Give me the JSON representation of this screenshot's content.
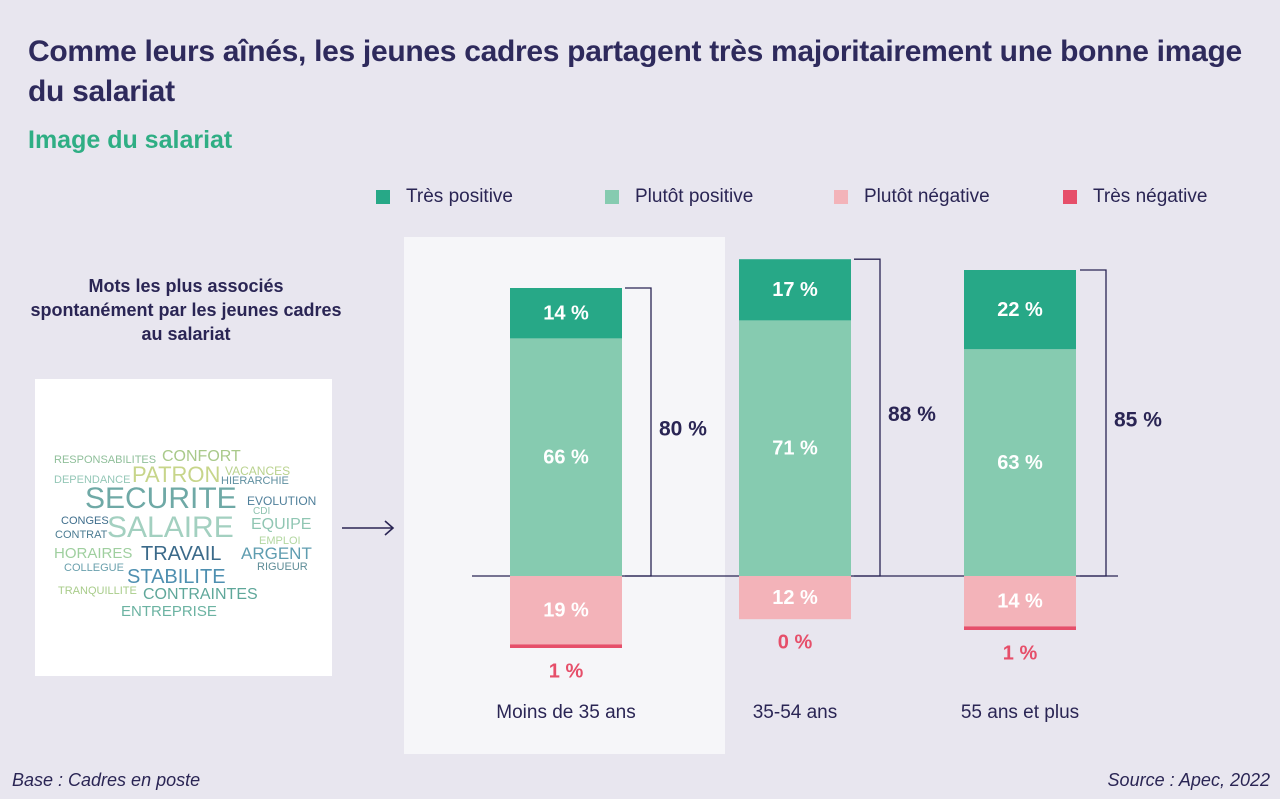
{
  "title": "Comme leurs aînés, les jeunes cadres partagent très majoritairement une bonne image du salariat",
  "subtitle": "Image du salariat",
  "legend": [
    {
      "label": "Très positive",
      "color": "#27a887"
    },
    {
      "label": "Plutôt positive",
      "color": "#86cbb0"
    },
    {
      "label": "Plutôt négative",
      "color": "#f3b3b9"
    },
    {
      "label": "Très négative",
      "color": "#e64f6a"
    }
  ],
  "wordcloud": {
    "title": "Mots les plus associés spontanément par les jeunes cadres au salariat",
    "words": [
      {
        "text": "RESPONSABILITES",
        "color": "#8fbf9a"
      },
      {
        "text": "CONFORT",
        "color": "#a9c98a"
      },
      {
        "text": "PATRON",
        "color": "#c7d58a"
      },
      {
        "text": "VACANCES",
        "color": "#b9d28e"
      },
      {
        "text": "DEPENDANCE",
        "color": "#94c7b7"
      },
      {
        "text": "HIERARCHIE",
        "color": "#5f8fa0"
      },
      {
        "text": "SECURITE",
        "color": "#6fa9a6"
      },
      {
        "text": "EVOLUTION",
        "color": "#4f7f9a"
      },
      {
        "text": "CDI",
        "color": "#8fc3b0"
      },
      {
        "text": "CONGES",
        "color": "#3f6e8c"
      },
      {
        "text": "SALAIRE",
        "color": "#a3d0c0"
      },
      {
        "text": "EQUIPE",
        "color": "#90c6b3"
      },
      {
        "text": "CONTRAT",
        "color": "#4b7c92"
      },
      {
        "text": "EMPLOI",
        "color": "#b3d7a0"
      },
      {
        "text": "HORAIRES",
        "color": "#9fcf9f"
      },
      {
        "text": "TRAVAIL",
        "color": "#3b6a8a"
      },
      {
        "text": "ARGENT",
        "color": "#5f9db0"
      },
      {
        "text": "COLLEGUE",
        "color": "#6aa0ad"
      },
      {
        "text": "RIGUEUR",
        "color": "#5d8c97"
      },
      {
        "text": "STABILITE",
        "color": "#4e8fb0"
      },
      {
        "text": "TRANQUILLITE",
        "color": "#a8cc8a"
      },
      {
        "text": "CONTRAINTES",
        "color": "#5fa79a"
      },
      {
        "text": "ENTREPRISE",
        "color": "#6cb3a2"
      }
    ]
  },
  "chart_data": {
    "type": "bar",
    "stacked": "diverging",
    "categories": [
      "Moins de 35 ans",
      "35-54 ans",
      "55 ans et plus"
    ],
    "highlighted_category": "Moins de 35 ans",
    "series": [
      {
        "name": "Très positive",
        "values": [
          14,
          17,
          22
        ],
        "labels": [
          "14 %",
          "17 %",
          "22 %"
        ],
        "color": "#27a887",
        "direction": "positive"
      },
      {
        "name": "Plutôt positive",
        "values": [
          66,
          71,
          63
        ],
        "labels": [
          "66 %",
          "71 %",
          "63 %"
        ],
        "color": "#86cbb0",
        "direction": "positive"
      },
      {
        "name": "Plutôt négative",
        "values": [
          19,
          12,
          14
        ],
        "labels": [
          "19 %",
          "12 %",
          "14 %"
        ],
        "color": "#f3b3b9",
        "direction": "negative"
      },
      {
        "name": "Très négative",
        "values": [
          1,
          0,
          1
        ],
        "labels": [
          "1 %",
          "0 %",
          "1 %"
        ],
        "color": "#e64f6a",
        "direction": "negative"
      }
    ],
    "positive_totals": [
      80,
      88,
      85
    ],
    "positive_total_labels": [
      "80 %",
      "88 %",
      "85 %"
    ]
  },
  "footer": {
    "base": "Base : Cadres en poste",
    "source": "Source : Apec, 2022"
  }
}
